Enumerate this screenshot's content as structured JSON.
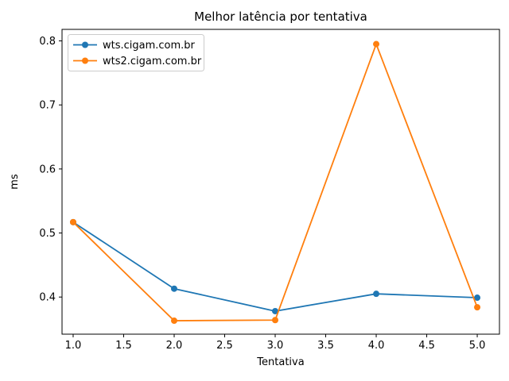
{
  "chart_data": {
    "type": "line",
    "title": "Melhor latência por tentativa",
    "xlabel": "Tentativa",
    "ylabel": "ms",
    "x": [
      1,
      2,
      3,
      4,
      5
    ],
    "series": [
      {
        "name": "wts.cigam.com.br",
        "color": "#1f77b4",
        "values": [
          0.517,
          0.413,
          0.378,
          0.405,
          0.399
        ]
      },
      {
        "name": "wts2.cigam.com.br",
        "color": "#ff7f0e",
        "values": [
          0.517,
          0.363,
          0.364,
          0.795,
          0.384
        ]
      }
    ],
    "xticks": [
      "1.0",
      "1.5",
      "2.0",
      "2.5",
      "3.0",
      "3.5",
      "4.0",
      "4.5",
      "5.0"
    ],
    "yticks": [
      "0.4",
      "0.5",
      "0.6",
      "0.7",
      "0.8"
    ],
    "xlim": [
      0.89,
      5.22
    ],
    "ylim": [
      0.342,
      0.818
    ],
    "grid": false,
    "legend_position": "upper left",
    "axis_color": "#000000",
    "background_color": "#ffffff"
  }
}
